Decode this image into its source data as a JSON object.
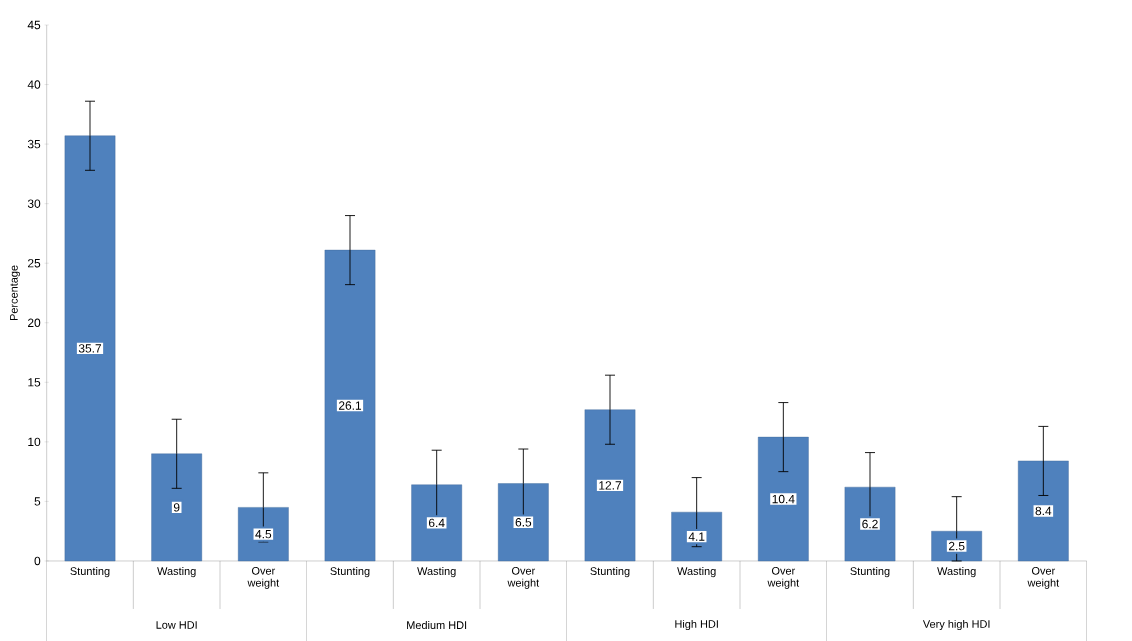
{
  "chart_data": {
    "type": "bar",
    "ylabel": "Percentage",
    "categories": [
      "Stunting",
      "Wasting",
      "Over weight",
      "Stunting",
      "Wasting",
      "Over weight",
      "Stunting",
      "Wasting",
      "Over weight",
      "Stunting",
      "Wasting",
      "Over weight"
    ],
    "values": [
      35.7,
      9,
      4.5,
      26.1,
      6.4,
      6.5,
      12.7,
      4.1,
      10.4,
      6.2,
      2.5,
      8.4
    ],
    "errors": [
      2.9,
      2.9,
      2.9,
      2.9,
      2.9,
      2.9,
      2.9,
      2.9,
      2.9,
      2.9,
      [
        0,
        5.4
      ],
      2.9
    ],
    "color": "#4f81bd",
    "data_labels": true,
    "ylim": [
      0,
      45
    ],
    "yticks": [
      0,
      5,
      10,
      15,
      20,
      25,
      30,
      35,
      40,
      45
    ],
    "annotations": [
      "Low HDI",
      "Medium HDI",
      "High HDI",
      "Very high HDI"
    ]
  }
}
